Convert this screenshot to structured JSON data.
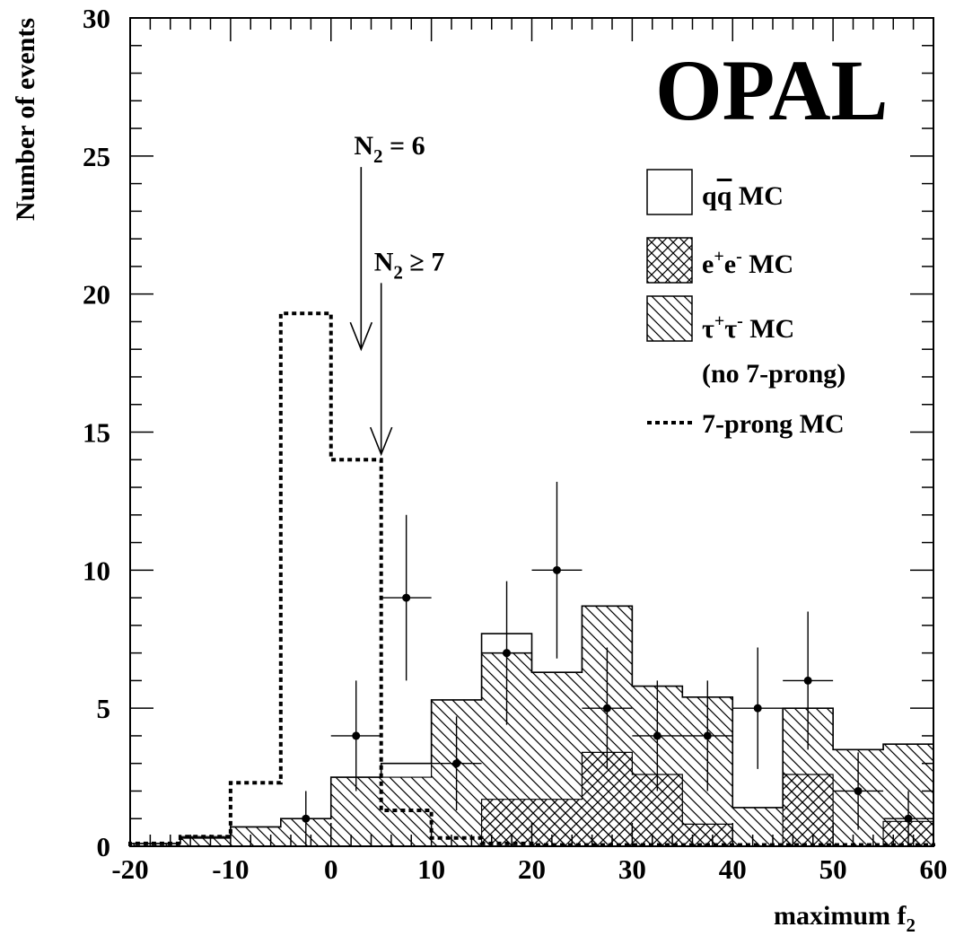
{
  "chart_data": {
    "type": "histogram",
    "xlabel": "maximum f",
    "xlabel_sub": "2",
    "ylabel": "Number of events",
    "xlim": [
      -20,
      60
    ],
    "ylim": [
      0,
      30
    ],
    "x_ticks": [
      "-20",
      "-10",
      "0",
      "10",
      "20",
      "30",
      "40",
      "50",
      "60"
    ],
    "y_ticks": [
      "0",
      "5",
      "10",
      "15",
      "20",
      "25",
      "30"
    ],
    "experiment_label": "OPAL",
    "bin_edges": [
      -20,
      -15,
      -10,
      -5,
      0,
      5,
      10,
      15,
      20,
      25,
      30,
      35,
      40,
      45,
      50,
      55,
      60
    ],
    "series": [
      {
        "name": "qq MC",
        "style": "open",
        "values": [
          0.1,
          0.3,
          0.7,
          1.0,
          2.5,
          3.0,
          5.3,
          7.7,
          6.3,
          8.7,
          5.8,
          5.4,
          1.4,
          5.0,
          3.5,
          3.7
        ]
      },
      {
        "name": "e+e- MC",
        "style": "cross-hatch",
        "values": [
          0,
          0,
          0,
          0,
          0,
          0,
          0,
          1.7,
          1.7,
          3.4,
          2.6,
          0.8,
          0,
          2.6,
          0,
          0.9
        ]
      },
      {
        "name": "τ+τ- MC (no 7-prong)",
        "style": "diagonal-hatch",
        "values": [
          0.1,
          0.35,
          0.7,
          1.0,
          2.5,
          2.5,
          5.3,
          7.0,
          6.3,
          8.7,
          5.8,
          5.4,
          1.4,
          5.0,
          3.5,
          3.7
        ]
      },
      {
        "name": "7-prong MC",
        "style": "dotted",
        "values": [
          0.1,
          0.35,
          2.3,
          19.3,
          14.0,
          1.3,
          0.3,
          0.1,
          0.05,
          0.05,
          0.05,
          0.05,
          0.05,
          0.05,
          0.05,
          0.05
        ]
      }
    ],
    "data_points": [
      {
        "x": 2.5,
        "y": 4,
        "err_low": 2,
        "err_high": 2
      },
      {
        "x": -2.5,
        "y": 1,
        "err_low": 1,
        "err_high": 1
      },
      {
        "x": 7.5,
        "y": 9,
        "err_low": 3,
        "err_high": 3
      },
      {
        "x": 12.5,
        "y": 3,
        "err_low": 1.7,
        "err_high": 1.7
      },
      {
        "x": 17.5,
        "y": 7,
        "err_low": 2.6,
        "err_high": 2.6
      },
      {
        "x": 22.5,
        "y": 10,
        "err_low": 3.2,
        "err_high": 3.2
      },
      {
        "x": 27.5,
        "y": 5,
        "err_low": 2.2,
        "err_high": 2.2
      },
      {
        "x": 32.5,
        "y": 4,
        "err_low": 2,
        "err_high": 2
      },
      {
        "x": 37.5,
        "y": 4,
        "err_low": 2,
        "err_high": 2
      },
      {
        "x": 42.5,
        "y": 5,
        "err_low": 2.2,
        "err_high": 2.2
      },
      {
        "x": 47.5,
        "y": 6,
        "err_low": 2.5,
        "err_high": 2.5
      },
      {
        "x": 52.5,
        "y": 2,
        "err_low": 1.4,
        "err_high": 1.4
      },
      {
        "x": 57.5,
        "y": 1,
        "err_low": 1,
        "err_high": 1
      }
    ],
    "annotations": [
      {
        "text": "N",
        "sub": "2",
        "rest": " = 6",
        "x": 3,
        "y_top": 24.6,
        "y_tip": 18.0
      },
      {
        "text": "N",
        "sub": "2",
        "rest": " ≥ 7",
        "x": 5,
        "y_top": 20.4,
        "y_tip": 14.2
      }
    ],
    "legend": {
      "position": "top-right",
      "entries": [
        {
          "label": "q",
          "label_bar": "q",
          "label_rest": " MC",
          "symbol": "open-box"
        },
        {
          "label": "e",
          "sup1": "+",
          "label_mid": "e",
          "sup2": "-",
          "label_rest": " MC",
          "symbol": "cross-hatch-box"
        },
        {
          "label": "τ",
          "sup1": "+",
          "label_mid": "τ",
          "sup2": "-",
          "label_rest": " MC",
          "symbol": "diagonal-hatch-box"
        },
        {
          "label": "(no 7-prong)",
          "symbol": "none"
        },
        {
          "label": "7-prong MC",
          "symbol": "dotted-line"
        }
      ]
    }
  }
}
